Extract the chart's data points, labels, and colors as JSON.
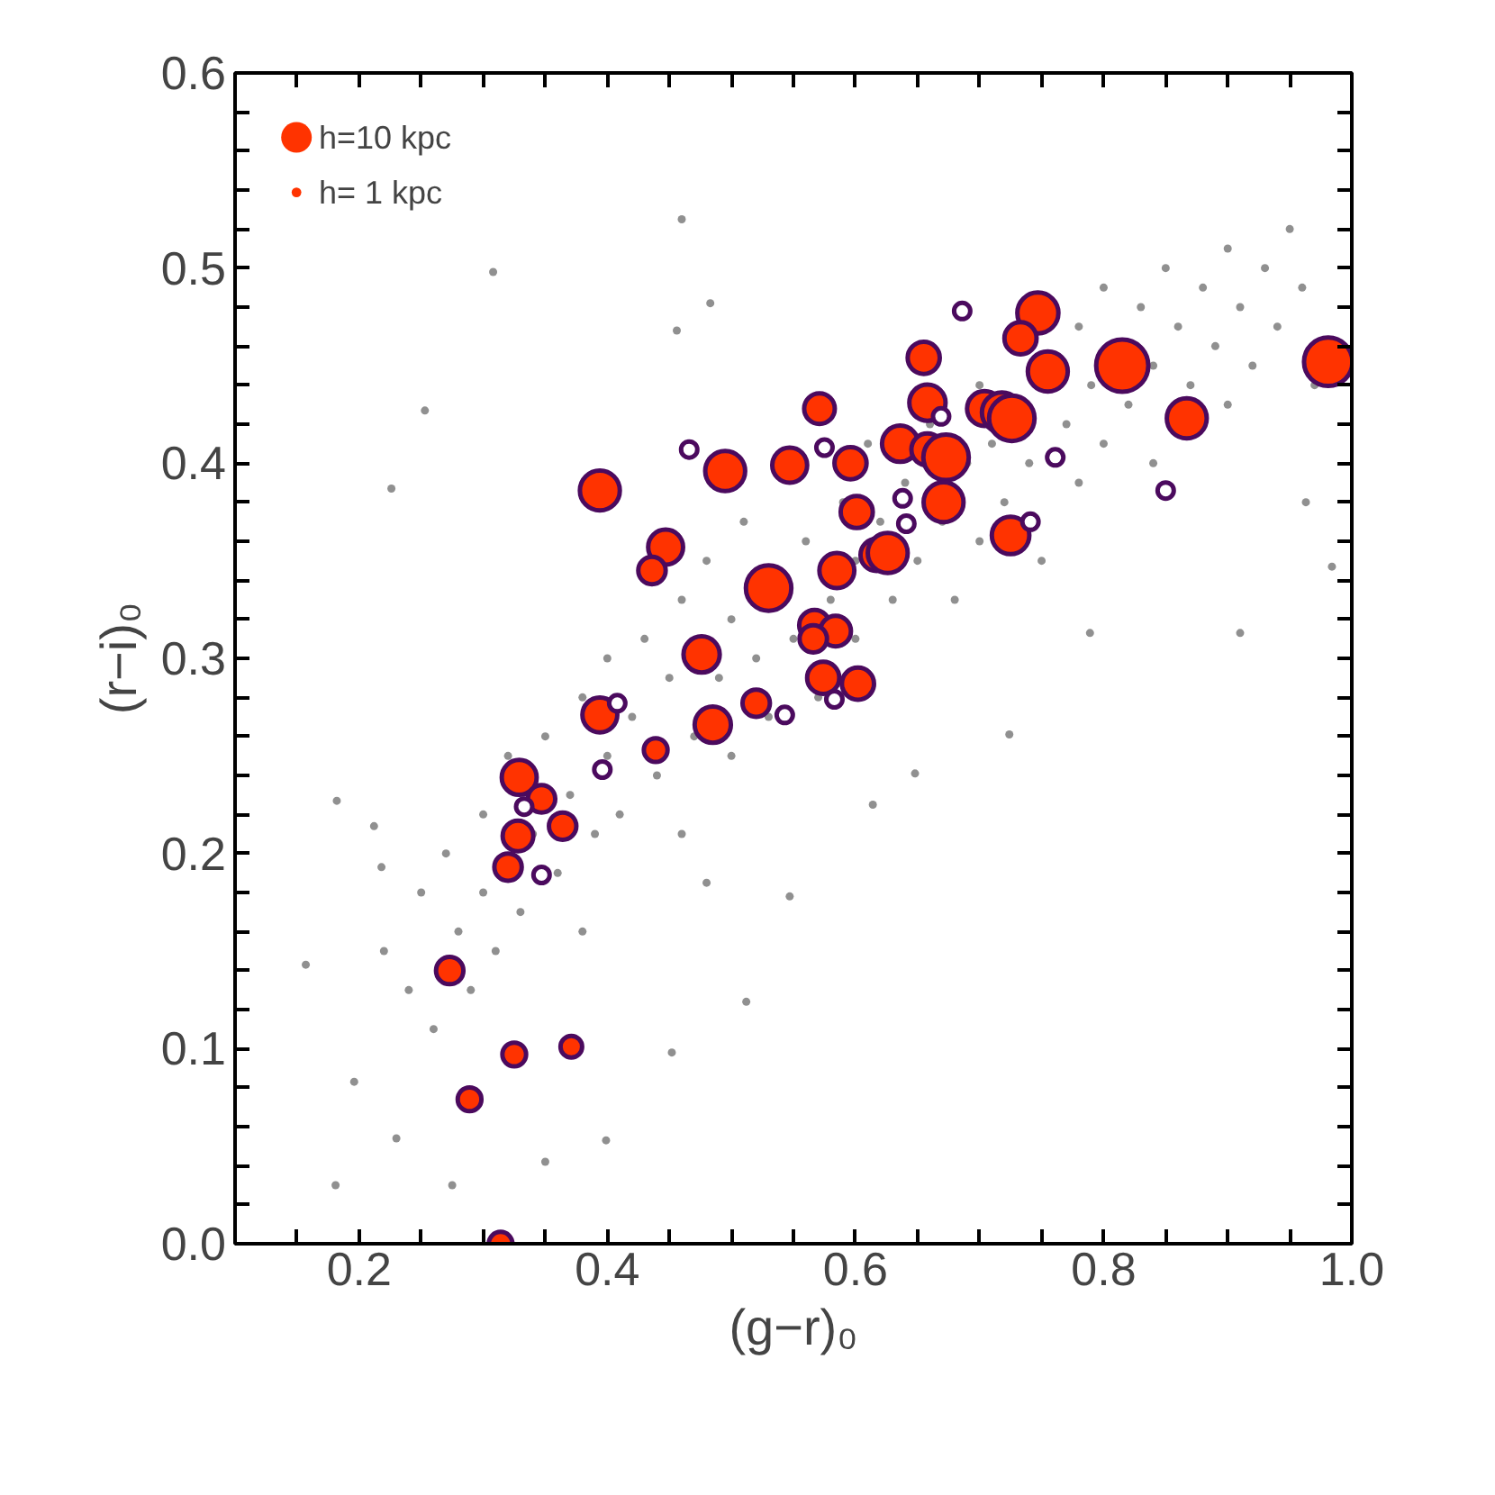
{
  "chart_data": {
    "type": "scatter",
    "xlabel": "(g−r)₀",
    "ylabel": "(r−i)₀",
    "xlim": [
      0.1,
      1.0
    ],
    "ylim": [
      0,
      0.6
    ],
    "xticks": [
      0.2,
      0.4,
      0.6,
      0.8,
      {
        "value": 1.0,
        "label": "1.0"
      },
      {
        "value": 0.15,
        "label": null
      },
      {
        "value": 0.25,
        "label": null
      },
      {
        "value": 0.3,
        "label": null
      },
      {
        "value": 0.35,
        "label": null
      },
      {
        "value": 0.45,
        "label": null
      },
      {
        "value": 0.5,
        "label": null
      },
      {
        "value": 0.55,
        "label": null
      },
      {
        "value": 0.65,
        "label": null
      },
      {
        "value": 0.7,
        "label": null
      },
      {
        "value": 0.75,
        "label": null
      },
      {
        "value": 0.85,
        "label": null
      },
      {
        "value": 0.9,
        "label": null
      },
      {
        "value": 0.95,
        "label": null
      }
    ],
    "yticks": [
      {
        "value": 0,
        "label": "0.0"
      },
      0.1,
      0.2,
      0.3,
      0.4,
      0.5,
      0.6,
      {
        "value": 0.02,
        "label": null
      },
      {
        "value": 0.04,
        "label": null
      },
      {
        "value": 0.06,
        "label": null
      },
      {
        "value": 0.08,
        "label": null
      },
      {
        "value": 0.12,
        "label": null
      },
      {
        "value": 0.14,
        "label": null
      },
      {
        "value": 0.16,
        "label": null
      },
      {
        "value": 0.18,
        "label": null
      },
      {
        "value": 0.22,
        "label": null
      },
      {
        "value": 0.24,
        "label": null
      },
      {
        "value": 0.26,
        "label": null
      },
      {
        "value": 0.28,
        "label": null
      },
      {
        "value": 0.32,
        "label": null
      },
      {
        "value": 0.34,
        "label": null
      },
      {
        "value": 0.36,
        "label": null
      },
      {
        "value": 0.38,
        "label": null
      },
      {
        "value": 0.42,
        "label": null
      },
      {
        "value": 0.44,
        "label": null
      },
      {
        "value": 0.46,
        "label": null
      },
      {
        "value": 0.48,
        "label": null
      },
      {
        "value": 0.52,
        "label": null
      },
      {
        "value": 0.54,
        "label": null
      },
      {
        "value": 0.56,
        "label": null
      },
      {
        "value": 0.58,
        "label": null
      }
    ],
    "grid": false,
    "size_legend": [
      {
        "value": 10,
        "label": "h=10 kpc"
      },
      {
        "value": 1,
        "label": "h= 1 kpc"
      }
    ],
    "series": [
      {
        "marker": "circle",
        "color": "#909090",
        "x": [
          0.308,
          0.46,
          0.483,
          0.456,
          0.253,
          0.226,
          0.157,
          0.181,
          0.182,
          0.196,
          0.23,
          0.275,
          0.35,
          0.399,
          0.452,
          0.218,
          0.212,
          0.724,
          0.512,
          0.547,
          0.614,
          0.648,
          0.48,
          0.91,
          0.984,
          0.963,
          0.789,
          0.22,
          0.24,
          0.25,
          0.26,
          0.27,
          0.28,
          0.29,
          0.3,
          0.3,
          0.31,
          0.32,
          0.33,
          0.34,
          0.35,
          0.36,
          0.37,
          0.38,
          0.38,
          0.39,
          0.4,
          0.4,
          0.41,
          0.42,
          0.43,
          0.44,
          0.45,
          0.46,
          0.46,
          0.47,
          0.48,
          0.49,
          0.5,
          0.5,
          0.51,
          0.52,
          0.53,
          0.55,
          0.56,
          0.57,
          0.58,
          0.59,
          0.6,
          0.6,
          0.61,
          0.62,
          0.63,
          0.64,
          0.65,
          0.66,
          0.67,
          0.68,
          0.69,
          0.7,
          0.7,
          0.71,
          0.72,
          0.74,
          0.75,
          0.77,
          0.78,
          0.78,
          0.79,
          0.8,
          0.8,
          0.82,
          0.83,
          0.84,
          0.84,
          0.85,
          0.86,
          0.87,
          0.88,
          0.89,
          0.9,
          0.9,
          0.91,
          0.92,
          0.93,
          0.94,
          0.95,
          0.96,
          0.97
        ],
        "values": [
          0.498,
          0.525,
          0.482,
          0.468,
          0.427,
          0.387,
          0.143,
          0.03,
          0.227,
          0.083,
          0.054,
          0.03,
          0.042,
          0.053,
          0.098,
          0.193,
          0.214,
          0.261,
          0.124,
          0.178,
          0.225,
          0.241,
          0.185,
          0.313,
          0.347,
          0.38,
          0.313,
          0.15,
          0.13,
          0.18,
          0.11,
          0.2,
          0.16,
          0.13,
          0.22,
          0.18,
          0.15,
          0.25,
          0.17,
          0.21,
          0.26,
          0.19,
          0.23,
          0.28,
          0.16,
          0.21,
          0.25,
          0.3,
          0.22,
          0.27,
          0.31,
          0.24,
          0.29,
          0.33,
          0.21,
          0.26,
          0.35,
          0.29,
          0.32,
          0.25,
          0.37,
          0.3,
          0.27,
          0.31,
          0.36,
          0.28,
          0.33,
          0.38,
          0.35,
          0.31,
          0.41,
          0.37,
          0.33,
          0.39,
          0.35,
          0.42,
          0.37,
          0.33,
          0.4,
          0.44,
          0.36,
          0.41,
          0.38,
          0.4,
          0.35,
          0.42,
          0.39,
          0.47,
          0.44,
          0.41,
          0.49,
          0.43,
          0.48,
          0.45,
          0.4,
          0.5,
          0.47,
          0.44,
          0.49,
          0.46,
          0.51,
          0.43,
          0.48,
          0.45,
          0.5,
          0.47,
          0.52,
          0.49,
          0.44
        ]
      },
      {
        "marker": "circle_open",
        "color": "#4b0a5e",
        "x": [
          0.466,
          0.408,
          0.396,
          0.333,
          0.347,
          0.575,
          0.686,
          0.669,
          0.761,
          0.85,
          0.638,
          0.641,
          0.741,
          0.583,
          0.543
        ],
        "values": [
          0.407,
          0.277,
          0.243,
          0.224,
          0.189,
          0.408,
          0.478,
          0.424,
          0.403,
          0.386,
          0.382,
          0.369,
          0.37,
          0.279,
          0.271
        ]
      },
      {
        "type": "bubble",
        "color": "#ff3300",
        "x": [
          0.394,
          0.495,
          0.447,
          0.436,
          0.476,
          0.394,
          0.485,
          0.439,
          0.329,
          0.347,
          0.364,
          0.328,
          0.32,
          0.273,
          0.325,
          0.371,
          0.289,
          0.314,
          0.547,
          0.571,
          0.596,
          0.747,
          0.733,
          0.655,
          0.755,
          0.815,
          0.981,
          0.658,
          0.704,
          0.718,
          0.726,
          0.867,
          0.636,
          0.658,
          0.673,
          0.601,
          0.671,
          0.725,
          0.53,
          0.585,
          0.617,
          0.626,
          0.567,
          0.584,
          0.566,
          0.574,
          0.602,
          0.52
        ],
        "values": [
          0.386,
          0.396,
          0.357,
          0.345,
          0.302,
          0.271,
          0.266,
          0.253,
          0.239,
          0.228,
          0.214,
          0.209,
          0.193,
          0.14,
          0.097,
          0.101,
          0.074,
          0.0,
          0.399,
          0.428,
          0.4,
          0.477,
          0.464,
          0.454,
          0.447,
          0.45,
          0.452,
          0.431,
          0.428,
          0.426,
          0.423,
          0.423,
          0.41,
          0.407,
          0.403,
          0.375,
          0.38,
          0.363,
          0.336,
          0.345,
          0.353,
          0.354,
          0.317,
          0.314,
          0.31,
          0.29,
          0.287,
          0.277
        ],
        "sizes": [
          17,
          17,
          13,
          8,
          14,
          13,
          14,
          6,
          13,
          8,
          8,
          10,
          8,
          8,
          6,
          5,
          6,
          6,
          13,
          10,
          11,
          18,
          11,
          11,
          17,
          29,
          25,
          14,
          13,
          17,
          22,
          17,
          14,
          11,
          22,
          11,
          17,
          15,
          22,
          13,
          11,
          17,
          10,
          10,
          8,
          11,
          11,
          8
        ]
      }
    ]
  }
}
